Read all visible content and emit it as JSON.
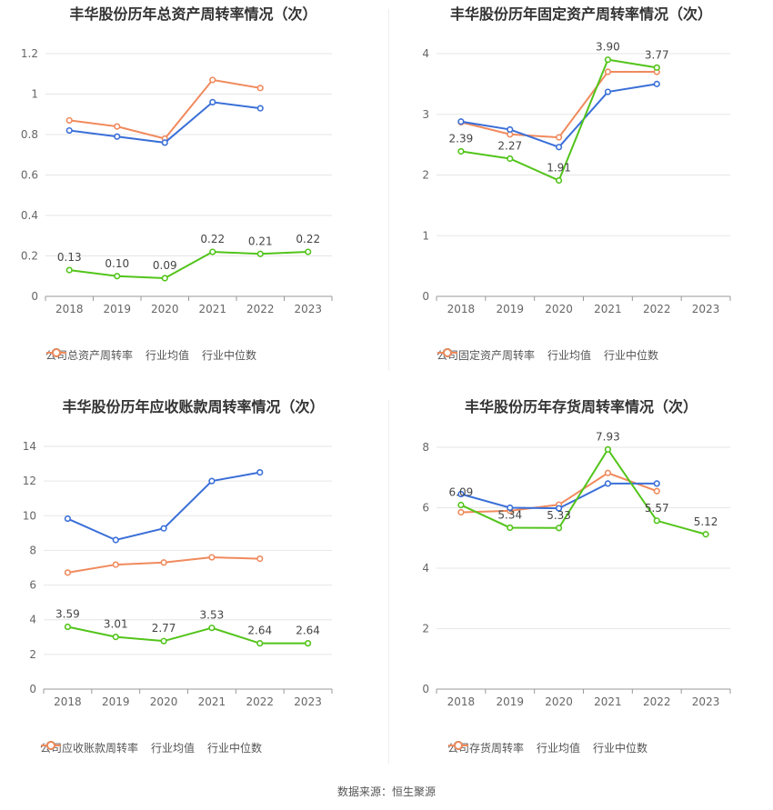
{
  "source_text": "数据来源：恒生聚源",
  "chart_data": [
    {
      "type": "line",
      "title": "丰华股份历年总资产周转率情况（次）",
      "categories": [
        "2018",
        "2019",
        "2020",
        "2021",
        "2022",
        "2023"
      ],
      "ylim": [
        0,
        1.2
      ],
      "yticks": [
        "0",
        "0.2",
        "0.4",
        "0.6",
        "0.8",
        "1",
        "1.2"
      ],
      "ytick_values": [
        0,
        0.2,
        0.4,
        0.6,
        0.8,
        1.0,
        1.2
      ],
      "grid": true,
      "legend_position": "bottom",
      "series": [
        {
          "name": "公司总资产周转率",
          "color": "#52c41a",
          "labels": true,
          "values": [
            0.13,
            0.1,
            0.09,
            0.22,
            0.21,
            0.22
          ],
          "value_labels": [
            "0.13",
            "0.10",
            "0.09",
            "0.22",
            "0.21",
            "0.22"
          ]
        },
        {
          "name": "行业均值",
          "color": "#3a6fd8",
          "labels": false,
          "values": [
            0.82,
            0.79,
            0.76,
            0.96,
            0.93,
            null
          ]
        },
        {
          "name": "行业中位数",
          "color": "#f08a5d",
          "labels": false,
          "values": [
            0.87,
            0.84,
            0.78,
            1.07,
            1.03,
            null
          ]
        }
      ]
    },
    {
      "type": "line",
      "title": "丰华股份历年固定资产周转率情况（次）",
      "categories": [
        "2018",
        "2019",
        "2020",
        "2021",
        "2022",
        "2023"
      ],
      "ylim": [
        0,
        4
      ],
      "yticks": [
        "0",
        "1",
        "2",
        "3",
        "4"
      ],
      "ytick_values": [
        0,
        1,
        2,
        3,
        4
      ],
      "grid": true,
      "legend_position": "bottom",
      "series": [
        {
          "name": "公司固定资产周转率",
          "color": "#52c41a",
          "labels": true,
          "values": [
            2.39,
            2.27,
            1.91,
            3.9,
            3.77,
            null
          ],
          "value_labels": [
            "2.39",
            "2.27",
            "1.91",
            "3.90",
            "3.77",
            ""
          ]
        },
        {
          "name": "行业均值",
          "color": "#3a6fd8",
          "labels": false,
          "values": [
            2.88,
            2.75,
            2.46,
            3.37,
            3.5,
            null
          ]
        },
        {
          "name": "行业中位数",
          "color": "#f08a5d",
          "labels": false,
          "values": [
            2.87,
            2.67,
            2.62,
            3.7,
            3.7,
            null
          ]
        }
      ]
    },
    {
      "type": "line",
      "title": "丰华股份历年应收账款周转率情况（次）",
      "categories": [
        "2018",
        "2019",
        "2020",
        "2021",
        "2022",
        "2023"
      ],
      "ylim": [
        0,
        14
      ],
      "yticks": [
        "0",
        "2",
        "4",
        "6",
        "8",
        "10",
        "12",
        "14"
      ],
      "ytick_values": [
        0,
        2,
        4,
        6,
        8,
        10,
        12,
        14
      ],
      "grid": true,
      "legend_position": "bottom",
      "series": [
        {
          "name": "公司应收账款周转率",
          "color": "#52c41a",
          "labels": true,
          "values": [
            3.59,
            3.01,
            2.77,
            3.53,
            2.64,
            2.64
          ],
          "value_labels": [
            "3.59",
            "3.01",
            "2.77",
            "3.53",
            "2.64",
            "2.64"
          ]
        },
        {
          "name": "行业均值",
          "color": "#3a6fd8",
          "labels": false,
          "values": [
            9.83,
            8.6,
            9.27,
            12.0,
            12.5,
            null
          ]
        },
        {
          "name": "行业中位数",
          "color": "#f08a5d",
          "labels": false,
          "values": [
            6.72,
            7.18,
            7.3,
            7.6,
            7.52,
            null
          ]
        }
      ]
    },
    {
      "type": "line",
      "title": "丰华股份历年存货周转率情况（次）",
      "categories": [
        "2018",
        "2019",
        "2020",
        "2021",
        "2022",
        "2023"
      ],
      "ylim": [
        0,
        8
      ],
      "yticks": [
        "0",
        "2",
        "4",
        "6",
        "8"
      ],
      "ytick_values": [
        0,
        2,
        4,
        6,
        8
      ],
      "grid": true,
      "legend_position": "bottom",
      "series": [
        {
          "name": "公司存货周转率",
          "color": "#52c41a",
          "labels": true,
          "values": [
            6.09,
            5.34,
            5.33,
            7.93,
            5.57,
            5.12
          ],
          "value_labels": [
            "6.09",
            "5.34",
            "5.33",
            "7.93",
            "5.57",
            "5.12"
          ]
        },
        {
          "name": "行业均值",
          "color": "#3a6fd8",
          "labels": false,
          "values": [
            6.45,
            6.0,
            5.98,
            6.8,
            6.8,
            null
          ]
        },
        {
          "name": "行业中位数",
          "color": "#f08a5d",
          "labels": false,
          "values": [
            5.85,
            5.9,
            6.1,
            7.15,
            6.55,
            null
          ]
        }
      ]
    }
  ]
}
